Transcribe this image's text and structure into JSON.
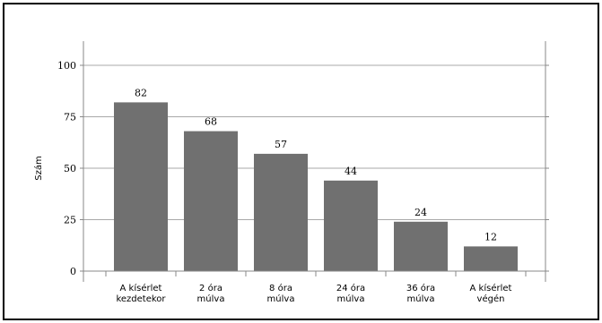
{
  "chart_data": {
    "type": "bar",
    "ylabel": "Szám",
    "ylim": [
      0,
      110
    ],
    "yticks": [
      0,
      25,
      50,
      75,
      100
    ],
    "grid": true,
    "bar_color": "#707070",
    "categories": [
      [
        "A kísérlet",
        "kezdetekor"
      ],
      [
        "2 óra",
        "múlva"
      ],
      [
        "8 óra",
        "múlva"
      ],
      [
        "24 óra",
        "múlva"
      ],
      [
        "36 óra",
        "múlva"
      ],
      [
        "A kísérlet",
        "végén"
      ]
    ],
    "values": [
      82,
      68,
      57,
      44,
      24,
      12
    ]
  }
}
